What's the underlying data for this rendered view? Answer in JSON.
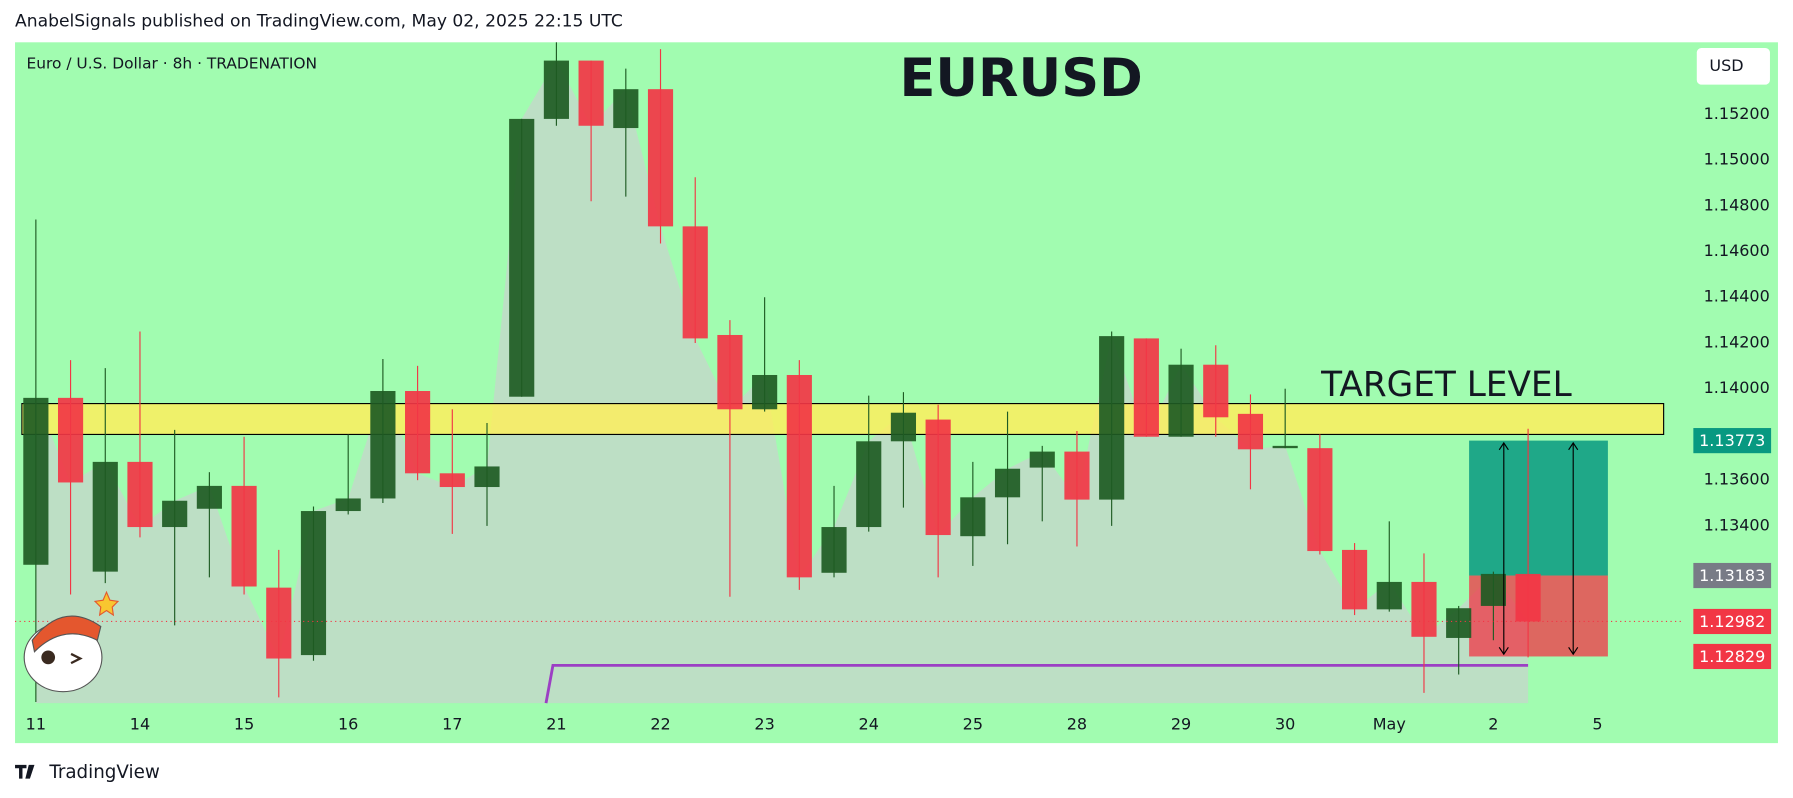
{
  "header": "AnabelSignals published on TradingView.com, May 02, 2025 22:15 UTC",
  "footer": "TradingView",
  "chart_data": {
    "type": "candlestick",
    "title": "EURUSD",
    "subtitle": "Euro / U.S. Dollar · 8h · TRADENATION",
    "currency": "USD",
    "annotation": "TARGET LEVEL",
    "open": [
      1.1323,
      1.1396,
      1.132,
      1.1368,
      1.13395,
      1.13475,
      1.13575,
      1.1313,
      1.12835,
      1.13465,
      1.1352,
      1.1399,
      1.1363,
      1.1357,
      1.13965,
      1.1518,
      1.15435,
      1.1514,
      1.1531,
      1.1471,
      1.14235,
      1.1391,
      1.1406,
      1.13195,
      1.13395,
      1.1377,
      1.13865,
      1.13355,
      1.13525,
      1.13655,
      1.13725,
      1.13515,
      1.1422,
      1.1379,
      1.14105,
      1.1389,
      1.1374,
      1.1374,
      1.13295,
      1.13035,
      1.13155,
      1.1291,
      1.1305,
      1.1319
    ],
    "high": [
      1.1474,
      1.14125,
      1.1409,
      1.1425,
      1.1382,
      1.13635,
      1.1379,
      1.13295,
      1.13485,
      1.138,
      1.1413,
      1.141,
      1.1391,
      1.1385,
      1.1518,
      1.15515,
      1.15435,
      1.154,
      1.15485,
      1.14925,
      1.143,
      1.144,
      1.14125,
      1.13575,
      1.1397,
      1.13985,
      1.1393,
      1.1368,
      1.139,
      1.1375,
      1.13815,
      1.1425,
      1.1422,
      1.14175,
      1.1419,
      1.13975,
      1.14,
      1.138,
      1.13325,
      1.1342,
      1.1328,
      1.1305,
      1.132,
      1.13825
    ],
    "low": [
      1.1263,
      1.131,
      1.1315,
      1.1335,
      1.12965,
      1.13175,
      1.131,
      1.1265,
      1.1281,
      1.1345,
      1.135,
      1.136,
      1.13365,
      1.134,
      1.13965,
      1.1515,
      1.1482,
      1.1484,
      1.14635,
      1.142,
      1.1309,
      1.139,
      1.1312,
      1.13175,
      1.13375,
      1.1348,
      1.13175,
      1.13225,
      1.1332,
      1.1342,
      1.1331,
      1.134,
      1.1379,
      1.1379,
      1.1379,
      1.1356,
      1.1374,
      1.13275,
      1.1301,
      1.13025,
      1.1267,
      1.1275,
      1.129,
      1.12825
    ],
    "close": [
      1.1396,
      1.1359,
      1.1368,
      1.13395,
      1.1351,
      1.13575,
      1.13135,
      1.1282,
      1.13465,
      1.1352,
      1.1399,
      1.1363,
      1.1357,
      1.1366,
      1.1518,
      1.15435,
      1.1515,
      1.1531,
      1.1471,
      1.1422,
      1.1391,
      1.1406,
      1.13175,
      1.13395,
      1.1377,
      1.13895,
      1.1336,
      1.13525,
      1.1365,
      1.13725,
      1.13515,
      1.1423,
      1.1379,
      1.14105,
      1.13875,
      1.13735,
      1.1375,
      1.1329,
      1.13035,
      1.13155,
      1.12915,
      1.1304,
      1.1319,
      1.12982
    ],
    "up_color": "#1e5b23",
    "down_color": "#f23645",
    "ylim": [
      1.12625,
      1.15515
    ],
    "yticks": [
      {
        "value": 1.152,
        "label": "1.15200"
      },
      {
        "value": 1.15,
        "label": "1.15000"
      },
      {
        "value": 1.148,
        "label": "1.14800"
      },
      {
        "value": 1.146,
        "label": "1.14600"
      },
      {
        "value": 1.144,
        "label": "1.14400"
      },
      {
        "value": 1.142,
        "label": "1.14200"
      },
      {
        "value": 1.14,
        "label": "1.14000"
      },
      {
        "value": 1.136,
        "label": "1.13600"
      },
      {
        "value": 1.134,
        "label": "1.13400"
      }
    ],
    "xlim": [
      -0.6,
      47.4
    ],
    "xticks": [
      {
        "value": 0,
        "label": "11"
      },
      {
        "value": 3,
        "label": "14"
      },
      {
        "value": 6,
        "label": "15"
      },
      {
        "value": 9,
        "label": "16"
      },
      {
        "value": 12,
        "label": "17"
      },
      {
        "value": 15,
        "label": "21"
      },
      {
        "value": 18,
        "label": "22"
      },
      {
        "value": 21,
        "label": "23"
      },
      {
        "value": 24,
        "label": "24"
      },
      {
        "value": 27,
        "label": "25"
      },
      {
        "value": 30,
        "label": "28"
      },
      {
        "value": 33,
        "label": "29"
      },
      {
        "value": 36,
        "label": "30"
      },
      {
        "value": 39,
        "label": "May"
      },
      {
        "value": 42,
        "label": "2"
      },
      {
        "value": 45,
        "label": "5"
      }
    ],
    "target_zone": [
      1.138,
      1.13935
    ],
    "zone_color": "#fdee5e",
    "support_level": 1.1279,
    "support_color": "#9c3fc4",
    "position": {
      "target": 1.13773,
      "entry": 1.13183,
      "stop": 1.12829
    },
    "target_color": "#089981",
    "stop_color": "#f23645",
    "entry_color": "#787b86"
  }
}
